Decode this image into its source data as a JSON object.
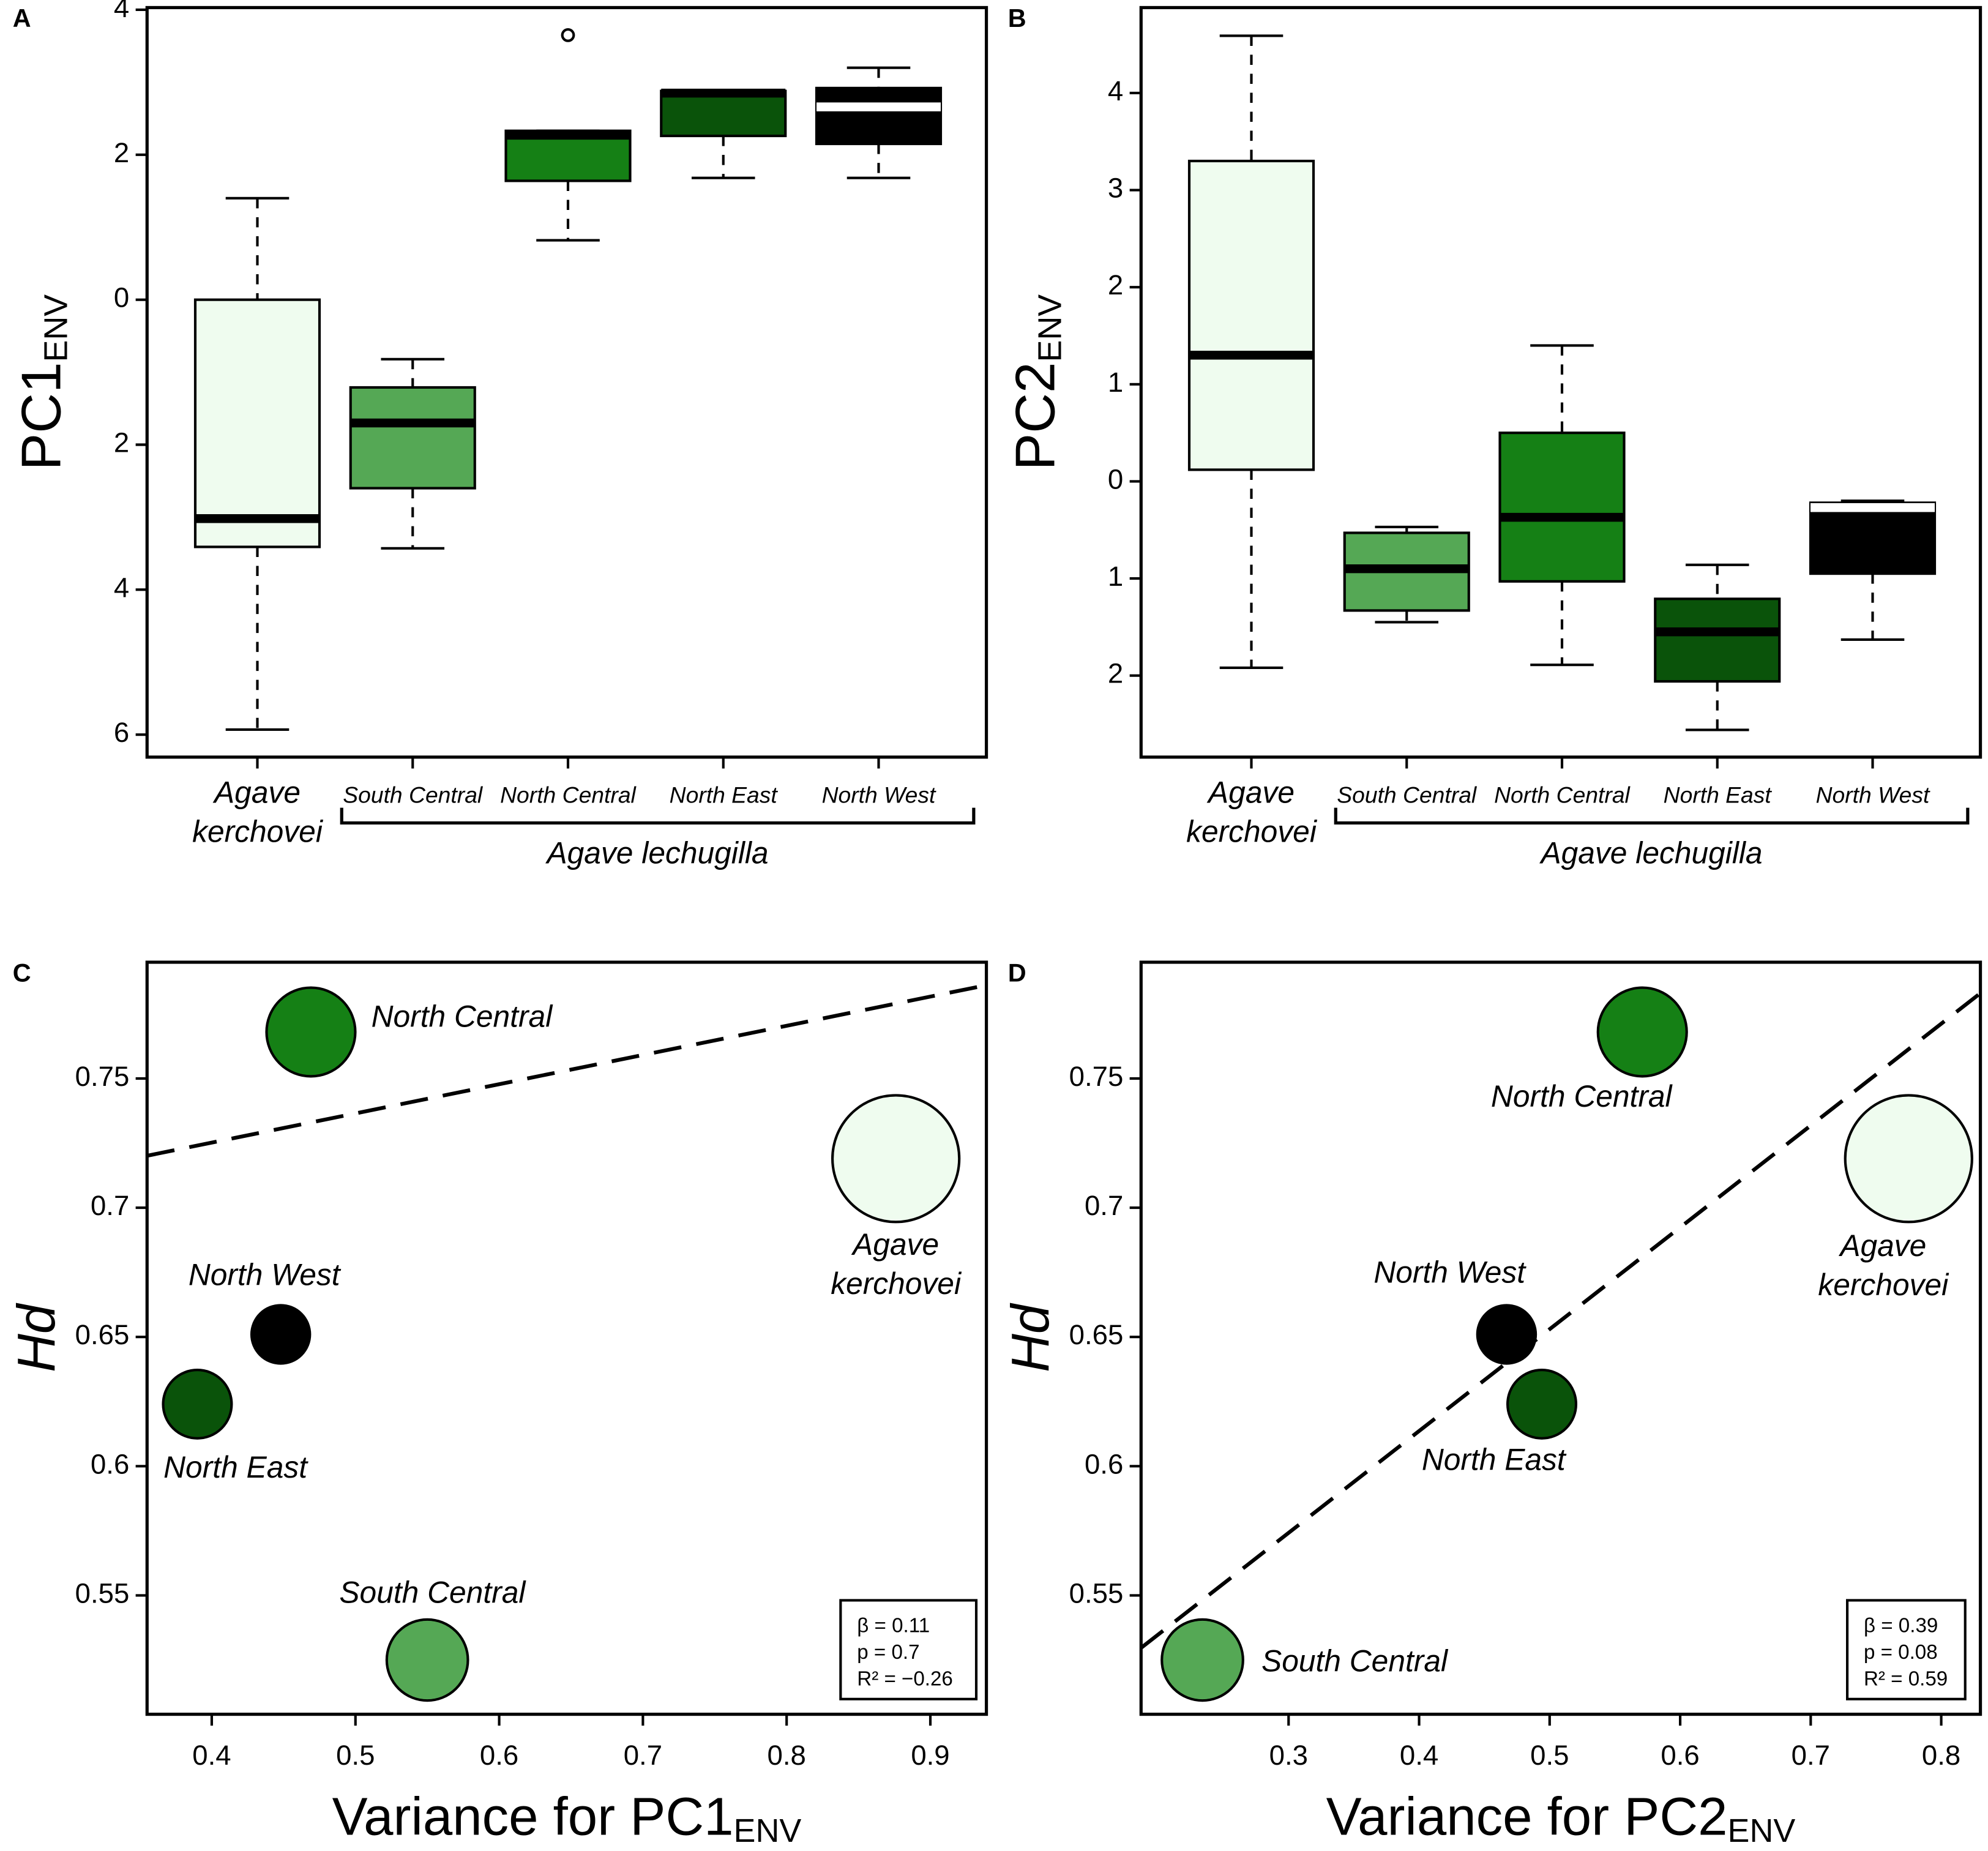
{
  "chart_data": [
    {
      "type": "box",
      "panel_label": "A",
      "ylabel": "PC1",
      "ylabel_sub": "ENV",
      "categories": [
        "Agave kerchovei",
        "South Central",
        "North Central",
        "North East",
        "North West"
      ],
      "colors": [
        "#effcef",
        "#55a855",
        "#158015",
        "#0a530a",
        "#000000"
      ],
      "median_colors": [
        "#000000",
        "#000000",
        "#000000",
        "#000000",
        "#ffffff"
      ],
      "q1": [
        -3.41,
        -2.6,
        1.64,
        2.26,
        2.15
      ],
      "median": [
        -3.02,
        -1.7,
        2.27,
        2.85,
        2.66
      ],
      "q3": [
        0,
        -1.21,
        2.33,
        2.88,
        2.92
      ],
      "whisker_low": [
        -5.93,
        -3.43,
        0.82,
        1.68,
        1.68
      ],
      "whisker_high": [
        1.4,
        -0.82,
        2.33,
        2.88,
        3.2
      ],
      "outliers": [
        [],
        [],
        [
          3.65
        ],
        [],
        []
      ],
      "group_label": "Agave lechugilla",
      "ylim": [
        -6.31,
        4.03
      ],
      "yticks": [
        4,
        2,
        0,
        {
          "value": -2,
          "label": "2"
        },
        {
          "value": -4,
          "label": "4"
        },
        {
          "value": -6,
          "label": "6"
        }
      ]
    },
    {
      "type": "box",
      "panel_label": "B",
      "ylabel": "PC2",
      "ylabel_sub": "ENV",
      "categories": [
        "Agave kerchovei",
        "South Central",
        "North Central",
        "North East",
        "North West"
      ],
      "colors": [
        "#effcef",
        "#55a855",
        "#158015",
        "#0a530a",
        "#000000"
      ],
      "median_colors": [
        "#000000",
        "#000000",
        "#000000",
        "#000000",
        "#ffffff"
      ],
      "q1": [
        0.12,
        -1.33,
        -1.03,
        -2.06,
        -0.95
      ],
      "median": [
        1.3,
        -0.9,
        -0.37,
        -1.55,
        -0.27
      ],
      "q3": [
        3.3,
        -0.53,
        0.5,
        -1.21,
        -0.22
      ],
      "whisker_low": [
        -1.92,
        -1.45,
        -1.89,
        -2.56,
        -1.63
      ],
      "whisker_high": [
        4.59,
        -0.47,
        1.4,
        -0.86,
        -0.2
      ],
      "outliers": [
        [],
        [],
        [],
        [],
        []
      ],
      "group_label": "Agave lechugilla",
      "ylim": [
        -2.84,
        4.88
      ],
      "yticks": [
        4,
        3,
        2,
        1,
        0,
        {
          "value": -1,
          "label": "1"
        },
        {
          "value": -2,
          "label": "2"
        }
      ]
    },
    {
      "type": "scatter",
      "panel_label": "C",
      "ylabel": "Hd",
      "xlabel": "Variance for PC1",
      "xlabel_sub": "ENV",
      "labels": [
        "North Central",
        "Agave kerchovei",
        "North West",
        "North East",
        "South Central"
      ],
      "colors": [
        "#158015",
        "#effcef",
        "#000000",
        "#0a530a",
        "#55a855"
      ],
      "x": [
        0.469,
        0.876,
        0.448,
        0.39,
        0.55
      ],
      "y": [
        0.768,
        0.719,
        0.651,
        0.624,
        0.525
      ],
      "sizes": [
        35,
        50,
        23,
        27,
        32
      ],
      "fit": {
        "slope": 0.113,
        "intercept": 0.68
      },
      "stats": [
        "β = 0.11",
        "p = 0.7",
        "R² =  −0.26"
      ],
      "xlim": [
        0.355,
        0.939
      ],
      "xticks": [
        0.4,
        0.5,
        0.6,
        0.7,
        0.8,
        0.9
      ],
      "ylim": [
        0.504,
        0.795
      ],
      "yticks": [
        0.55,
        0.6,
        0.65,
        0.7,
        0.75
      ]
    },
    {
      "type": "scatter",
      "panel_label": "D",
      "ylabel": "Hd",
      "xlabel": "Variance for PC2",
      "xlabel_sub": "ENV",
      "labels": [
        "North Central",
        "Agave kerchovei",
        "North West",
        "North East",
        "South Central"
      ],
      "colors": [
        "#158015",
        "#effcef",
        "#000000",
        "#0a530a",
        "#55a855"
      ],
      "x": [
        0.571,
        0.775,
        0.467,
        0.494,
        0.234
      ],
      "y": [
        0.768,
        0.719,
        0.651,
        0.624,
        0.525
      ],
      "sizes": [
        35,
        50,
        23,
        27,
        32
      ],
      "fit": {
        "slope": 0.394,
        "intercept": 0.456
      },
      "stats": [
        "β = 0.39",
        "p = 0.08",
        "R² = 0.59"
      ],
      "xlim": [
        0.187,
        0.83
      ],
      "xticks": [
        0.3,
        0.4,
        0.5,
        0.6,
        0.7,
        0.8
      ],
      "ylim": [
        0.504,
        0.795
      ],
      "yticks": [
        0.55,
        0.6,
        0.65,
        0.7,
        0.75
      ]
    }
  ]
}
